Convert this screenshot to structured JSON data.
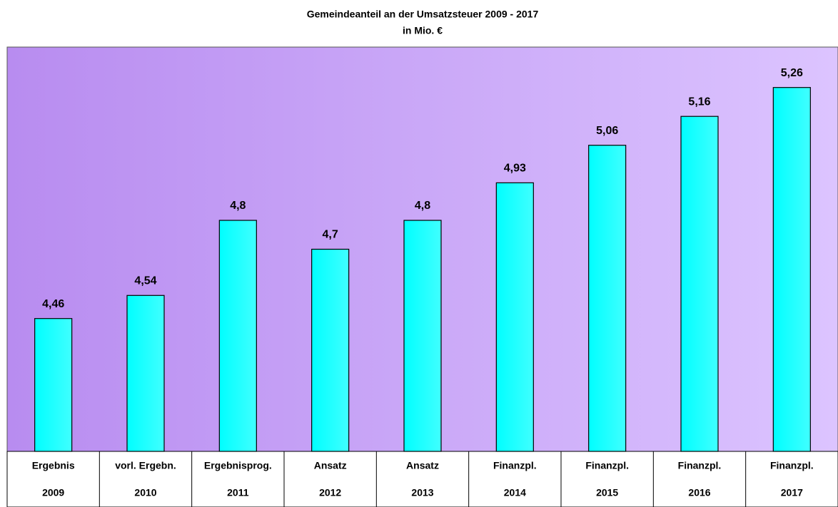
{
  "chart_data": {
    "type": "bar",
    "title": "Gemeindeanteil an der Umsatzsteuer 2009 - 2017",
    "subtitle": "in Mio. €",
    "categories": [
      [
        "Ergebnis",
        "2009"
      ],
      [
        "vorl. Ergebn.",
        "2010"
      ],
      [
        "Ergebnisprog.",
        "2011"
      ],
      [
        "Ansatz",
        "2012"
      ],
      [
        "Ansatz",
        "2013"
      ],
      [
        "Finanzpl.",
        "2014"
      ],
      [
        "Finanzpl.",
        "2015"
      ],
      [
        "Finanzpl.",
        "2016"
      ],
      [
        "Finanzpl.",
        "2017"
      ]
    ],
    "values": [
      4.46,
      4.54,
      4.8,
      4.7,
      4.8,
      4.93,
      5.06,
      5.16,
      5.26
    ],
    "value_labels": [
      "4,46",
      "4,54",
      "4,8",
      "4,7",
      "4,8",
      "4,93",
      "5,06",
      "5,16",
      "5,26"
    ],
    "color": "#00ffff",
    "ylim": [
      4,
      5.4
    ]
  }
}
